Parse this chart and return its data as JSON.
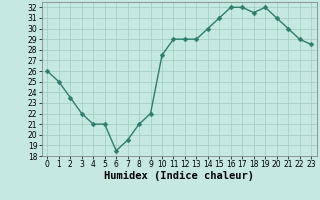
{
  "x": [
    0,
    1,
    2,
    3,
    4,
    5,
    6,
    7,
    8,
    9,
    10,
    11,
    12,
    13,
    14,
    15,
    16,
    17,
    18,
    19,
    20,
    21,
    22,
    23
  ],
  "y": [
    26,
    25,
    23.5,
    22,
    21,
    21,
    18.5,
    19.5,
    21,
    22,
    27.5,
    29,
    29,
    29,
    30,
    31,
    32,
    32,
    31.5,
    32,
    31,
    30,
    29,
    28.5
  ],
  "line_color": "#2e7d6e",
  "marker_color": "#2e7d6e",
  "bg_color": "#c5e8e0",
  "grid_color": "#a0ccc0",
  "xlabel": "Humidex (Indice chaleur)",
  "xlim": [
    -0.5,
    23.5
  ],
  "ylim": [
    18,
    32.5
  ],
  "yticks": [
    18,
    19,
    20,
    21,
    22,
    23,
    24,
    25,
    26,
    27,
    28,
    29,
    30,
    31,
    32
  ],
  "xticks": [
    0,
    1,
    2,
    3,
    4,
    5,
    6,
    7,
    8,
    9,
    10,
    11,
    12,
    13,
    14,
    15,
    16,
    17,
    18,
    19,
    20,
    21,
    22,
    23
  ],
  "tick_fontsize": 5.5,
  "xlabel_fontsize": 7.5,
  "linewidth": 1.0,
  "markersize": 2.5
}
